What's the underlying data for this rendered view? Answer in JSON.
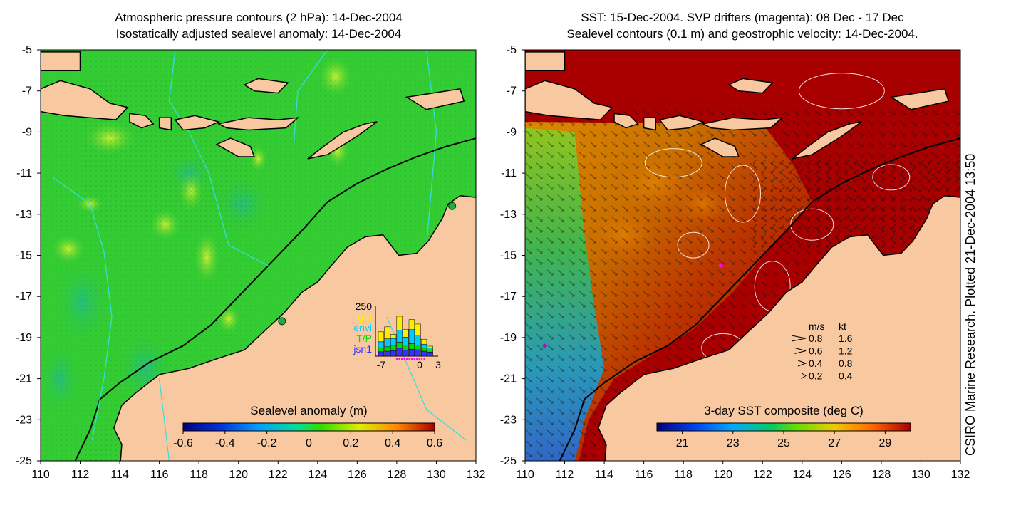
{
  "left_title": {
    "line1": "Atmospheric pressure contours (2 hPa): 14-Dec-2004",
    "line2": "Isostatically adjusted sealevel anomaly: 14-Dec-2004"
  },
  "right_title": {
    "line1": "SST: 15-Dec-2004. SVP drifters (magenta): 08 Dec - 17 Dec",
    "line2": "Sealevel contours (0.1 m) and geostrophic velocity: 14-Dec-2004."
  },
  "side_credit": "CSIRO Marine Research. Plotted 21-Dec-2004 13:50",
  "colors": {
    "land": "#f8c8a0",
    "coast": "#000000",
    "left_ocean": "#33cc33",
    "right_ocean": "#a80000",
    "pressure_contour": "#33dddd",
    "sealevel_contour": "#ffffff"
  },
  "chart_data": [
    {
      "type": "heatmap",
      "panel": "left",
      "x_ticks": [
        "110",
        "112",
        "114",
        "116",
        "118",
        "120",
        "122",
        "124",
        "126",
        "128",
        "130",
        "132"
      ],
      "y_ticks": [
        "-5",
        "-7",
        "-9",
        "-11",
        "-13",
        "-15",
        "-17",
        "-19",
        "-21",
        "-23",
        "-25"
      ],
      "xlim": [
        110,
        132
      ],
      "ylim": [
        -25,
        -5
      ],
      "colorbar": {
        "label": "Sealevel anomaly (m)",
        "ticks": [
          "-0.6",
          "-0.4",
          "-0.2",
          "0",
          "0.2",
          "0.4",
          "0.6"
        ],
        "range": [
          -0.6,
          0.6
        ]
      },
      "stations": [
        {
          "lon": 122.2,
          "lat": -18.2
        },
        {
          "lon": 130.8,
          "lat": -12.6
        }
      ],
      "inset_histogram": {
        "y_tick": "250",
        "x_ticks": [
          "-7",
          "0",
          "3"
        ],
        "legend": [
          "gfo",
          "envi",
          "T/P",
          "jsn1"
        ],
        "legend_colors": [
          "#ffee00",
          "#00ccff",
          "#00dd00",
          "#3333ff"
        ],
        "days": [
          -6,
          -5,
          -4,
          -3,
          -2,
          -1,
          0,
          1,
          2
        ],
        "series": [
          {
            "name": "jsn1",
            "values": [
              22,
              25,
              28,
              40,
              30,
              35,
              32,
              25,
              20
            ]
          },
          {
            "name": "T/P",
            "values": [
              20,
              22,
              26,
              30,
              25,
              28,
              24,
              15,
              10
            ]
          },
          {
            "name": "envi",
            "values": [
              30,
              40,
              35,
              60,
              40,
              70,
              50,
              20,
              10
            ]
          },
          {
            "name": "gfo",
            "values": [
              50,
              60,
              20,
              70,
              40,
              50,
              55,
              25,
              10
            ]
          }
        ]
      }
    },
    {
      "type": "heatmap",
      "panel": "right",
      "x_ticks": [
        "110",
        "112",
        "114",
        "116",
        "118",
        "120",
        "122",
        "124",
        "126",
        "128",
        "130",
        "132"
      ],
      "y_ticks": [
        "-5",
        "-7",
        "-9",
        "-11",
        "-13",
        "-15",
        "-17",
        "-19",
        "-21",
        "-23",
        "-25"
      ],
      "xlim": [
        110,
        132
      ],
      "ylim": [
        -25,
        -5
      ],
      "colorbar": {
        "label": "3-day SST composite (deg C)",
        "ticks": [
          "21",
          "23",
          "25",
          "27",
          "29"
        ],
        "range": [
          20,
          30
        ]
      },
      "velocity_key": {
        "header": [
          "m/s",
          "kt"
        ],
        "rows": [
          [
            "0.8",
            "1.6"
          ],
          [
            "0.6",
            "1.2"
          ],
          [
            "0.4",
            "0.8"
          ],
          [
            "0.2",
            "0.4"
          ]
        ]
      }
    }
  ]
}
